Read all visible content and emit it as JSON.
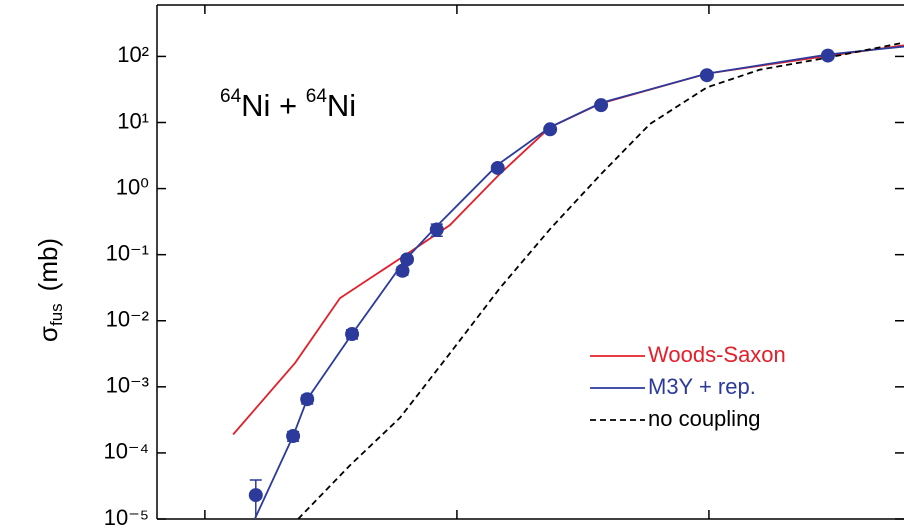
{
  "chart_data": {
    "type": "line",
    "annotation": {
      "mass1": "64",
      "element1": "Ni + ",
      "mass2": "64",
      "element2": "Ni"
    },
    "y_label": {
      "symbol": "σ",
      "subscript": "fus",
      "unit": "(mb)"
    },
    "log_y": true,
    "xlim": [
      84.05,
      98.87
    ],
    "xticks": [
      85,
      90,
      95
    ],
    "ylim": [
      1e-05,
      600
    ],
    "yticks": [
      {
        "value": 1e-05,
        "label": "10⁻⁵"
      },
      {
        "value": 0.0001,
        "label": "10⁻⁴"
      },
      {
        "value": 0.001,
        "label": "10⁻³"
      },
      {
        "value": 0.01,
        "label": "10⁻²"
      },
      {
        "value": 0.1,
        "label": "10⁻¹"
      },
      {
        "value": 1,
        "label": "10⁰"
      },
      {
        "value": 10,
        "label": "10¹"
      },
      {
        "value": 100,
        "label": "10²"
      }
    ],
    "legend": "lower right",
    "series": [
      {
        "name": "Woods-Saxon",
        "color": "#e3202a",
        "dashed": false,
        "x": [
          85.56,
          86.79,
          87.68,
          88.99,
          89.86,
          90.85,
          91.85,
          92.86,
          94.96,
          97.36,
          98.87
        ],
        "values": [
          0.00019,
          0.0023,
          0.022,
          0.1,
          0.28,
          1.66,
          8.5,
          19.5,
          55,
          102,
          147
        ]
      },
      {
        "name": "M3Y + rep.",
        "color": "#2c3a9c",
        "dashed": false,
        "x": [
          85.99,
          86.75,
          87.03,
          87.92,
          88.97,
          89.6,
          90.81,
          91.85,
          92.86,
          94.96,
          97.36,
          98.87
        ],
        "values": [
          1e-05,
          0.00018,
          0.00065,
          0.0063,
          0.083,
          0.27,
          2.3,
          8.5,
          19.8,
          55,
          107,
          141
        ]
      },
      {
        "name": "no coupling",
        "color": "#000000",
        "dashed": true,
        "x": [
          86.85,
          87.88,
          88.87,
          89.86,
          90.85,
          91.85,
          92.86,
          93.83,
          94.96,
          96.01,
          97.36,
          98.87
        ],
        "values": [
          1e-05,
          6.5e-05,
          0.00034,
          0.0032,
          0.031,
          0.245,
          1.66,
          9.5,
          34,
          63,
          96,
          162
        ]
      }
    ],
    "points": {
      "color": "#2c3a9c",
      "x": [
        86.01,
        86.75,
        87.03,
        87.92,
        88.92,
        89.01,
        89.6,
        90.81,
        91.85,
        92.86,
        94.96,
        97.36
      ],
      "values": [
        2.3e-05,
        0.00018,
        0.00065,
        0.0063,
        0.057,
        0.085,
        0.24,
        2.05,
        7.9,
        18.3,
        52,
        103
      ],
      "errors": [
        1.6e-05,
        3e-05,
        0.0001,
        0.001,
        0.008,
        0.01,
        0.05,
        0.2,
        0.6,
        1,
        4,
        8
      ]
    }
  }
}
